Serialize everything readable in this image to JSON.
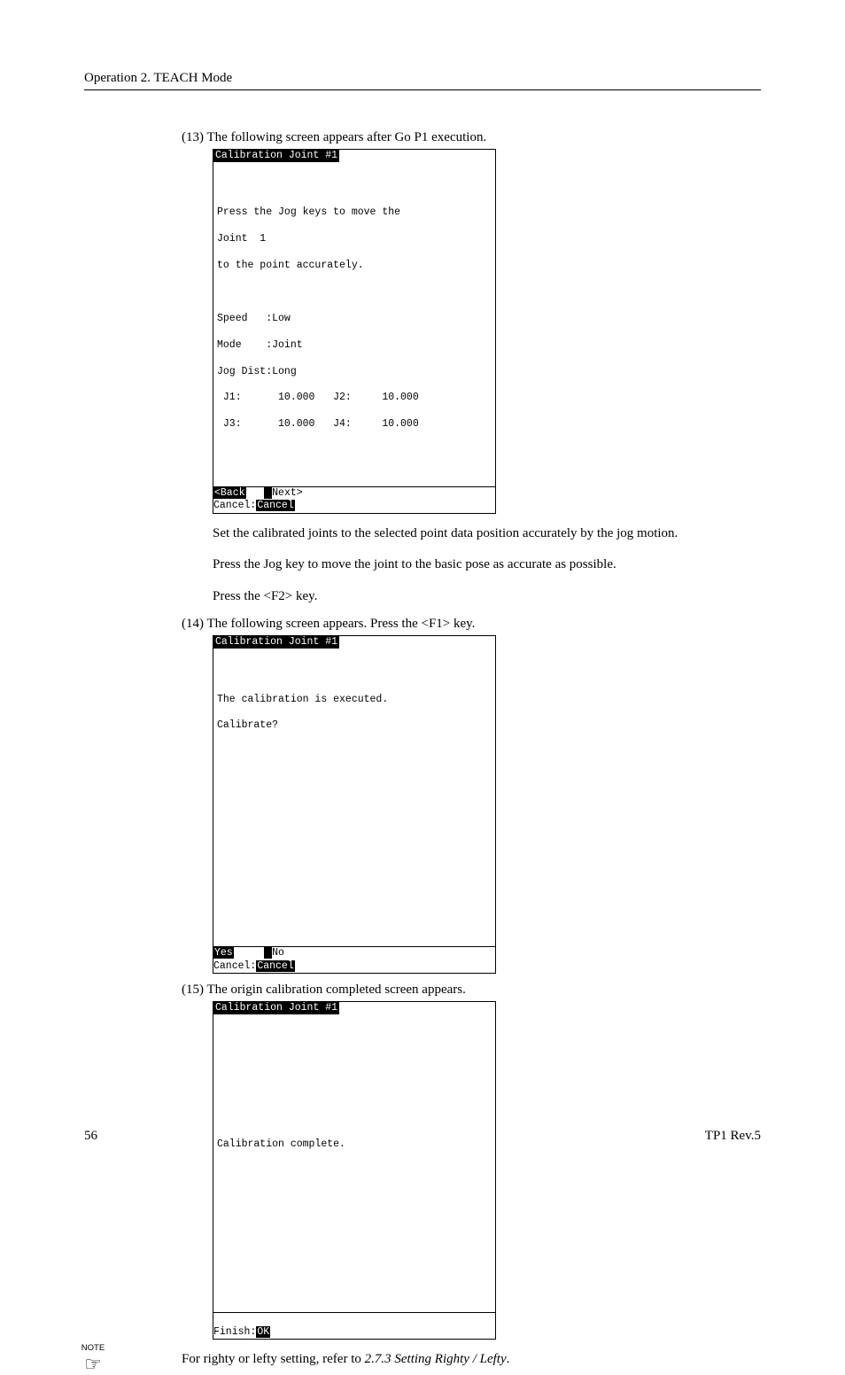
{
  "header": "Operation   2. TEACH Mode",
  "step13": {
    "num": "(13)",
    "lead": "The following screen appears after Go P1 execution.",
    "terminal": {
      "title": "Calibration Joint #1",
      "lines": {
        "l1": "Press the Jog keys to move the",
        "l2": "Joint  1",
        "l3": "to the point accurately.",
        "l4": "Speed   :Low",
        "l5": "Mode    :Joint",
        "l6": "Jog Dist:Long",
        "l7": " J1:      10.000   J2:     10.000",
        "l8": " J3:      10.000   J4:     10.000"
      },
      "footer": {
        "back": "<Back",
        "next": "Next>",
        "cancel_label": "Cancel:",
        "cancel": "Cancel"
      }
    },
    "para1": "Set the calibrated joints to the selected point data position accurately by the jog motion.",
    "para2": "Press the Jog key to move the joint to the basic pose as accurate as possible.",
    "para3": "Press the <F2> key."
  },
  "step14": {
    "num": "(14)",
    "lead": "The following screen appears.    Press the <F1> key.",
    "terminal": {
      "title": "Calibration Joint #1",
      "lines": {
        "l1": "The calibration is executed.",
        "l2": "Calibrate?"
      },
      "footer": {
        "yes": "Yes",
        "no": "No",
        "cancel_label": "Cancel:",
        "cancel": "Cancel"
      }
    }
  },
  "step15": {
    "num": "(15)",
    "lead": "The origin calibration completed screen appears.",
    "terminal": {
      "title": "Calibration Joint #1",
      "lines": {
        "l1": "Calibration complete."
      },
      "footer": {
        "finish_label": "Finish:",
        "ok": "OK"
      }
    }
  },
  "note": {
    "label": "NOTE",
    "text_pre": "For righty or lefty setting, refer to ",
    "ref": "2.7.3 Setting Righty / Lefty",
    "text_post": "."
  },
  "footer": {
    "page": "56",
    "doc": "TP1   Rev.5"
  }
}
